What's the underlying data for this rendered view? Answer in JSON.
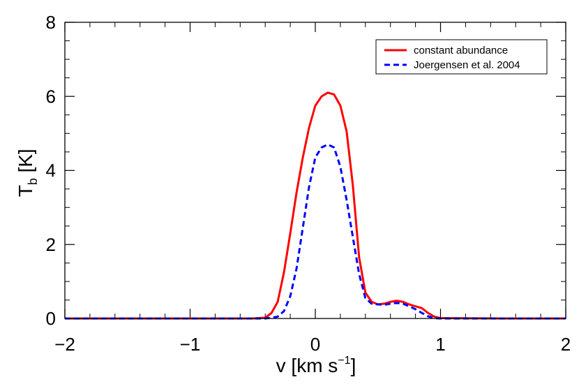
{
  "chart_data": {
    "type": "line",
    "title": "",
    "xlabel": {
      "base": "v [km s",
      "sup": "−1",
      "close": "]"
    },
    "ylabel": {
      "base": "T",
      "sub": "b",
      "rest": " [K]"
    },
    "xlim": [
      -2,
      2
    ],
    "ylim": [
      0,
      8
    ],
    "x_ticks": [
      -2,
      -1,
      0,
      1,
      2
    ],
    "x_tick_labels": [
      "−2",
      "−1",
      "0",
      "1",
      "2"
    ],
    "y_ticks": [
      0,
      2,
      4,
      6,
      8
    ],
    "y_tick_labels": [
      "0",
      "2",
      "4",
      "6",
      "8"
    ],
    "x_minor_step": 0.2,
    "y_minor_step": 0.5,
    "grid": false,
    "legend_position": "top-right",
    "series": [
      {
        "name": "constant abundance",
        "color": "#ff0000",
        "dash": "solid",
        "x": [
          -2.0,
          -1.5,
          -1.0,
          -0.5,
          -0.4,
          -0.35,
          -0.3,
          -0.25,
          -0.2,
          -0.15,
          -0.1,
          -0.05,
          0.0,
          0.05,
          0.1,
          0.15,
          0.2,
          0.25,
          0.3,
          0.35,
          0.4,
          0.45,
          0.5,
          0.55,
          0.6,
          0.65,
          0.7,
          0.75,
          0.8,
          0.85,
          0.9,
          0.95,
          1.0,
          1.5,
          2.0
        ],
        "y": [
          0,
          0,
          0,
          0,
          0.02,
          0.15,
          0.45,
          1.25,
          2.3,
          3.4,
          4.35,
          5.15,
          5.75,
          6.0,
          6.1,
          6.05,
          5.75,
          5.05,
          3.6,
          1.65,
          0.7,
          0.45,
          0.38,
          0.4,
          0.45,
          0.48,
          0.45,
          0.38,
          0.33,
          0.28,
          0.15,
          0.05,
          0.01,
          0,
          0
        ]
      },
      {
        "name": "Joergensen et al. 2004",
        "color": "#0000ff",
        "dash": "dashed",
        "x": [
          -2.0,
          -1.5,
          -1.0,
          -0.5,
          -0.4,
          -0.35,
          -0.3,
          -0.25,
          -0.2,
          -0.15,
          -0.1,
          -0.05,
          0.0,
          0.05,
          0.1,
          0.15,
          0.2,
          0.25,
          0.3,
          0.35,
          0.4,
          0.45,
          0.5,
          0.55,
          0.6,
          0.65,
          0.7,
          0.75,
          0.8,
          0.85,
          0.9,
          0.95,
          1.0,
          1.5,
          2.0
        ],
        "y": [
          0,
          0,
          0,
          0,
          0,
          0.02,
          0.05,
          0.2,
          0.6,
          1.35,
          2.45,
          3.55,
          4.35,
          4.62,
          4.7,
          4.62,
          4.1,
          3.2,
          2.2,
          1.2,
          0.55,
          0.4,
          0.38,
          0.37,
          0.4,
          0.42,
          0.4,
          0.33,
          0.25,
          0.15,
          0.06,
          0.01,
          0,
          0,
          0
        ]
      }
    ]
  }
}
